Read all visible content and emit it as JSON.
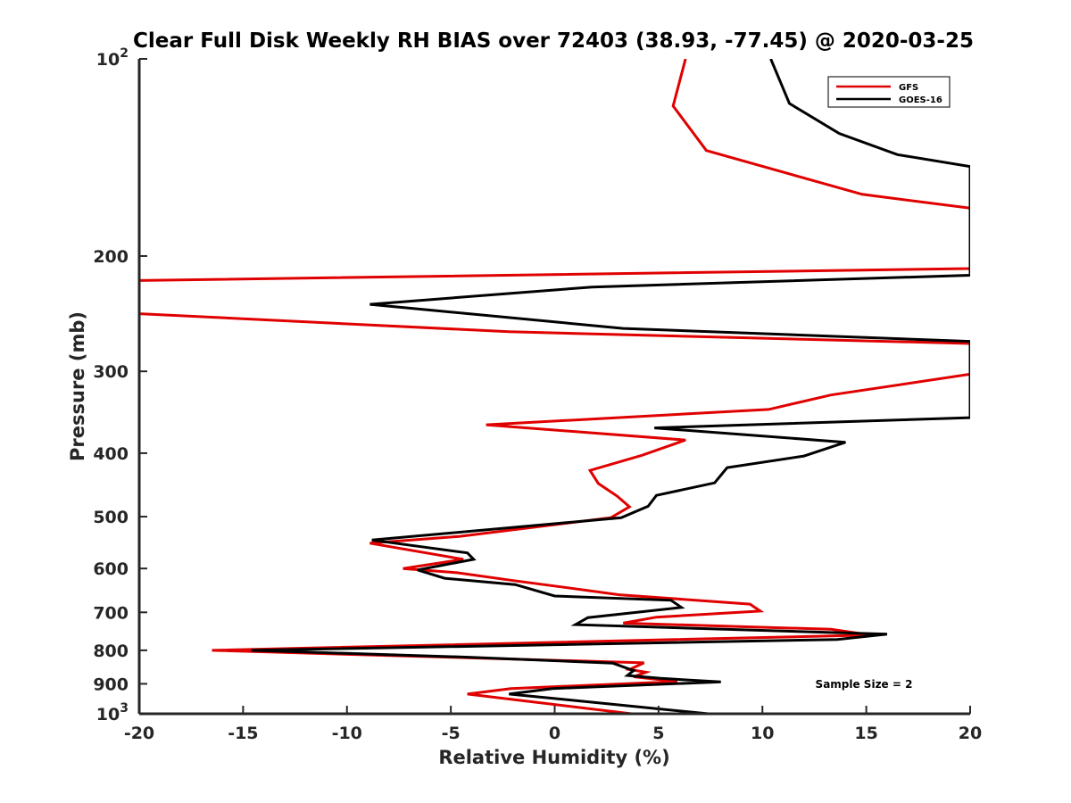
{
  "chart_data": {
    "type": "line",
    "title": "Clear Full Disk Weekly RH BIAS over 72403 (38.93, -77.45) @ 2020-03-25",
    "xlabel": "Relative Humidity (%)",
    "ylabel": "Pressure (mb)",
    "xlim": [
      -20,
      20
    ],
    "ylim": [
      100,
      1000
    ],
    "y_scale": "log",
    "y_reversed": true,
    "grid": false,
    "legend_position": "top-right",
    "x_ticks": [
      "-20",
      "-15",
      "-10",
      "-5",
      "0",
      "5",
      "10",
      "15",
      "20"
    ],
    "y_ticks": [
      {
        "base": "10",
        "exp": "2",
        "value": 100
      },
      {
        "base": "200",
        "exp": "",
        "value": 200
      },
      {
        "base": "300",
        "exp": "",
        "value": 300
      },
      {
        "base": "400",
        "exp": "",
        "value": 400
      },
      {
        "base": "500",
        "exp": "",
        "value": 500
      },
      {
        "base": "600",
        "exp": "",
        "value": 600
      },
      {
        "base": "700",
        "exp": "",
        "value": 700
      },
      {
        "base": "800",
        "exp": "",
        "value": 800
      },
      {
        "base": "900",
        "exp": "",
        "value": 900
      },
      {
        "base": "10",
        "exp": "3",
        "value": 1000
      }
    ],
    "annotation": "Sample Size = 2",
    "series": [
      {
        "name": "GFS",
        "color": "#e00000",
        "points": [
          [
            6.3,
            100
          ],
          [
            5.7,
            118
          ],
          [
            7.3,
            138
          ],
          [
            14.8,
            161
          ],
          [
            20.0,
            169
          ],
          [
            20.0,
            209
          ],
          [
            -20.0,
            218
          ],
          [
            -20.0,
            245
          ],
          [
            -2.2,
            261
          ],
          [
            20.0,
            272
          ],
          [
            20.0,
            303
          ],
          [
            13.3,
            326
          ],
          [
            10.3,
            343
          ],
          [
            -3.3,
            362
          ],
          [
            6.3,
            382
          ],
          [
            4.2,
            403
          ],
          [
            1.7,
            425
          ],
          [
            2.1,
            445
          ],
          [
            3.0,
            465
          ],
          [
            3.6,
            483
          ],
          [
            2.7,
            502
          ],
          [
            -4.6,
            536
          ],
          [
            -8.9,
            549
          ],
          [
            -4.4,
            581
          ],
          [
            -7.3,
            600
          ],
          [
            -4.7,
            609
          ],
          [
            -2.0,
            626
          ],
          [
            0.6,
            642
          ],
          [
            3.1,
            658
          ],
          [
            9.4,
            680
          ],
          [
            9.9,
            697
          ],
          [
            4.9,
            712
          ],
          [
            3.3,
            727
          ],
          [
            13.3,
            743
          ],
          [
            15.2,
            758
          ],
          [
            -16.5,
            800
          ],
          [
            -3.8,
            822
          ],
          [
            4.3,
            836
          ],
          [
            3.6,
            856
          ],
          [
            4.4,
            864
          ],
          [
            3.8,
            878
          ],
          [
            5.9,
            893
          ],
          [
            -2.1,
            915
          ],
          [
            -4.2,
            933
          ],
          [
            3.7,
            1000
          ]
        ]
      },
      {
        "name": "GOES-16",
        "color": "#000000",
        "points": [
          [
            10.4,
            100
          ],
          [
            11.3,
            117
          ],
          [
            13.7,
            130
          ],
          [
            16.5,
            140
          ],
          [
            20.0,
            146
          ],
          [
            20.0,
            214
          ],
          [
            1.8,
            223
          ],
          [
            -8.9,
            237
          ],
          [
            3.3,
            258
          ],
          [
            20.0,
            270
          ],
          [
            20.0,
            353
          ],
          [
            4.8,
            366
          ],
          [
            14.0,
            385
          ],
          [
            12.0,
            404
          ],
          [
            8.3,
            421
          ],
          [
            7.7,
            444
          ],
          [
            4.9,
            464
          ],
          [
            4.5,
            482
          ],
          [
            3.2,
            502
          ],
          [
            -8.8,
            543
          ],
          [
            -4.2,
            568
          ],
          [
            -3.9,
            581
          ],
          [
            -6.6,
            603
          ],
          [
            -5.3,
            621
          ],
          [
            -1.9,
            635
          ],
          [
            0.0,
            661
          ],
          [
            5.6,
            671
          ],
          [
            6.1,
            688
          ],
          [
            1.6,
            713
          ],
          [
            1.0,
            731
          ],
          [
            16.0,
            756
          ],
          [
            13.6,
            770
          ],
          [
            -14.6,
            800
          ],
          [
            -4.0,
            820
          ],
          [
            2.8,
            837
          ],
          [
            3.8,
            859
          ],
          [
            3.5,
            874
          ],
          [
            5.1,
            883
          ],
          [
            8.0,
            894
          ],
          [
            -0.1,
            915
          ],
          [
            -2.2,
            933
          ],
          [
            0.6,
            952
          ],
          [
            7.4,
            1000
          ]
        ]
      }
    ]
  }
}
